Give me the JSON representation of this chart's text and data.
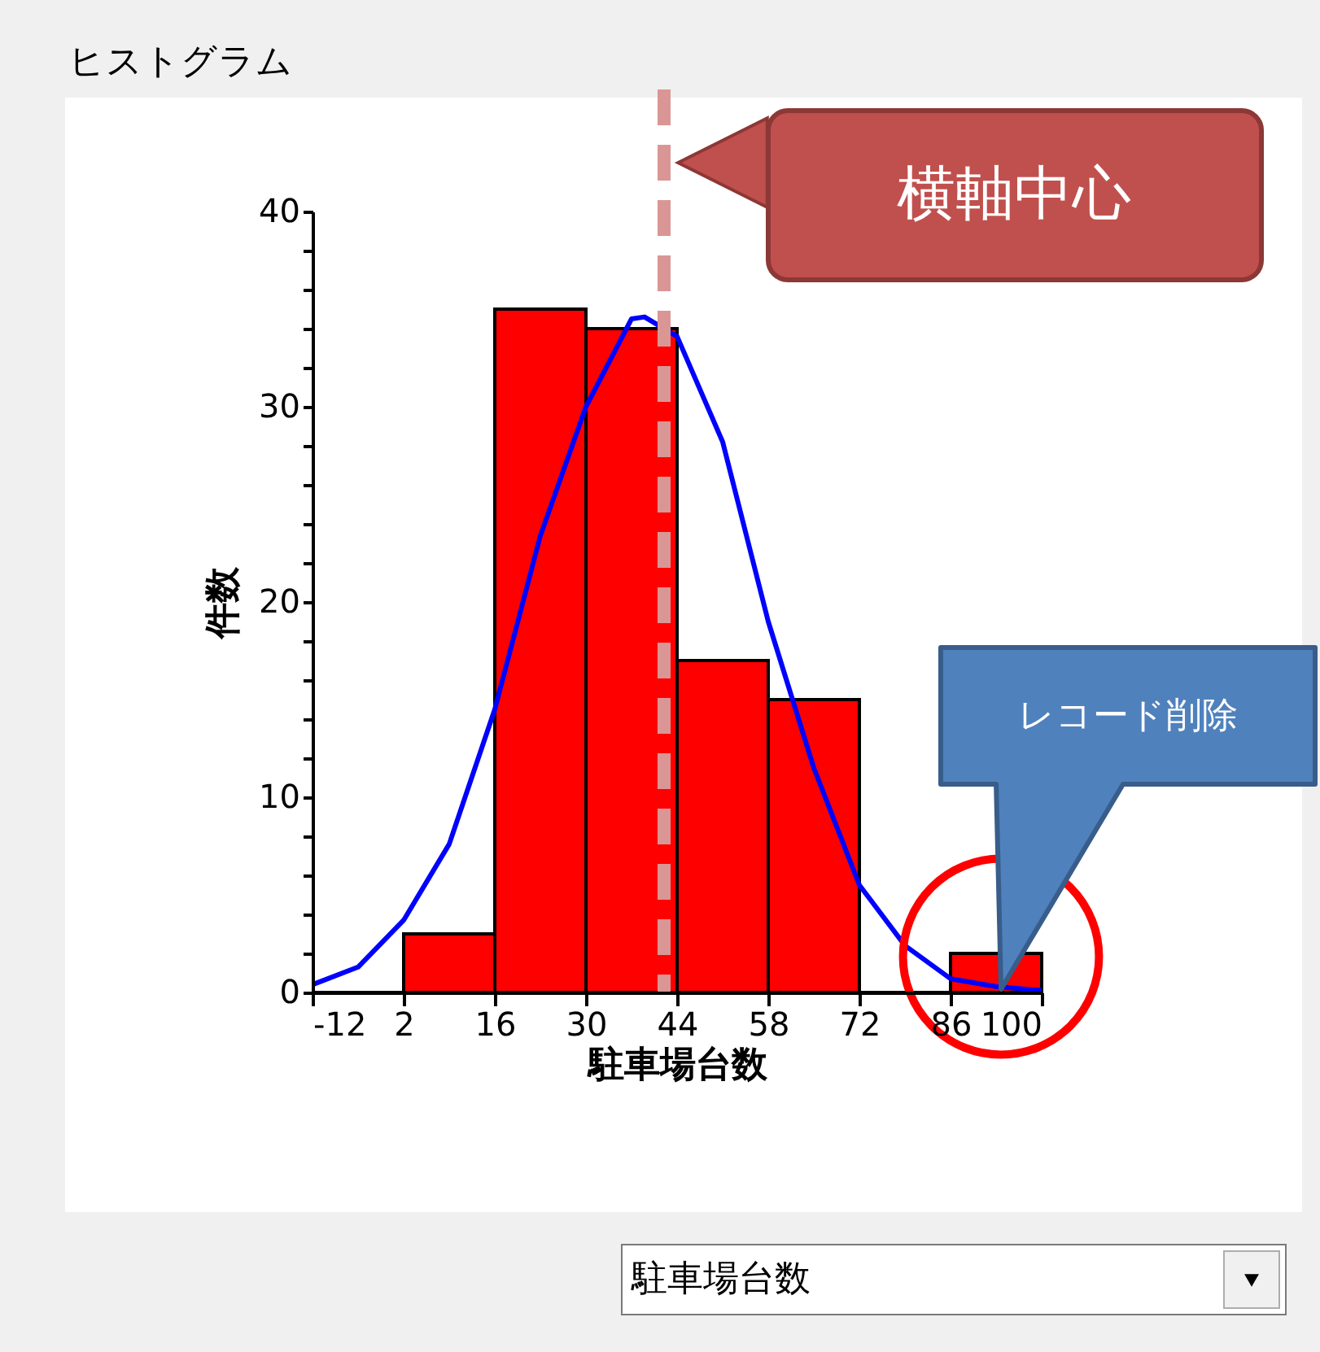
{
  "chart_data": {
    "type": "histogram",
    "title": "ヒストグラム",
    "xlabel": "駐車場台数",
    "ylabel": "件数",
    "bins": [
      -12,
      2,
      16,
      30,
      44,
      58,
      72,
      86,
      100
    ],
    "values": [
      0,
      3,
      35,
      34,
      17,
      15,
      0,
      2
    ],
    "color": "#ff0000",
    "series": [
      {
        "type": "line",
        "color": "#0000ff",
        "x": [
          -12,
          -5,
          2,
          9,
          16,
          23,
          30,
          37,
          39,
          44,
          51,
          58,
          65,
          72,
          79,
          86,
          93,
          100
        ],
        "values": [
          0.4,
          1.3,
          3.7,
          7.6,
          14.5,
          23.4,
          30,
          34.5,
          34.6,
          33.6,
          28.2,
          19,
          11.5,
          5.5,
          2.4,
          0.7,
          0.3,
          0.1
        ]
      }
    ],
    "xlim": [
      -12,
      100
    ],
    "xticks": [
      -12,
      2,
      16,
      30,
      44,
      58,
      72,
      86,
      100
    ],
    "ylim": [
      0,
      40
    ],
    "yticks": [
      0,
      {
        "value": 2,
        "label": null
      },
      {
        "value": 4,
        "label": null
      },
      {
        "value": 6,
        "label": null
      },
      {
        "value": 8,
        "label": null
      },
      10,
      {
        "value": 12,
        "label": null
      },
      {
        "value": 14,
        "label": null
      },
      {
        "value": 16,
        "label": null
      },
      {
        "value": 18,
        "label": null
      },
      20,
      {
        "value": 22,
        "label": null
      },
      {
        "value": 24,
        "label": null
      },
      {
        "value": 26,
        "label": null
      },
      {
        "value": 28,
        "label": null
      },
      30,
      {
        "value": 32,
        "label": null
      },
      {
        "value": 34,
        "label": null
      },
      {
        "value": 36,
        "label": null
      },
      {
        "value": 38,
        "label": null
      },
      40
    ],
    "ref_lines": [
      {
        "axis": "x",
        "value": 42,
        "color": "#d99694",
        "line_style": "dashed"
      }
    ],
    "annotations": [
      "横軸中心",
      "レコード削除",
      "駐車場台数"
    ],
    "grid": false
  }
}
